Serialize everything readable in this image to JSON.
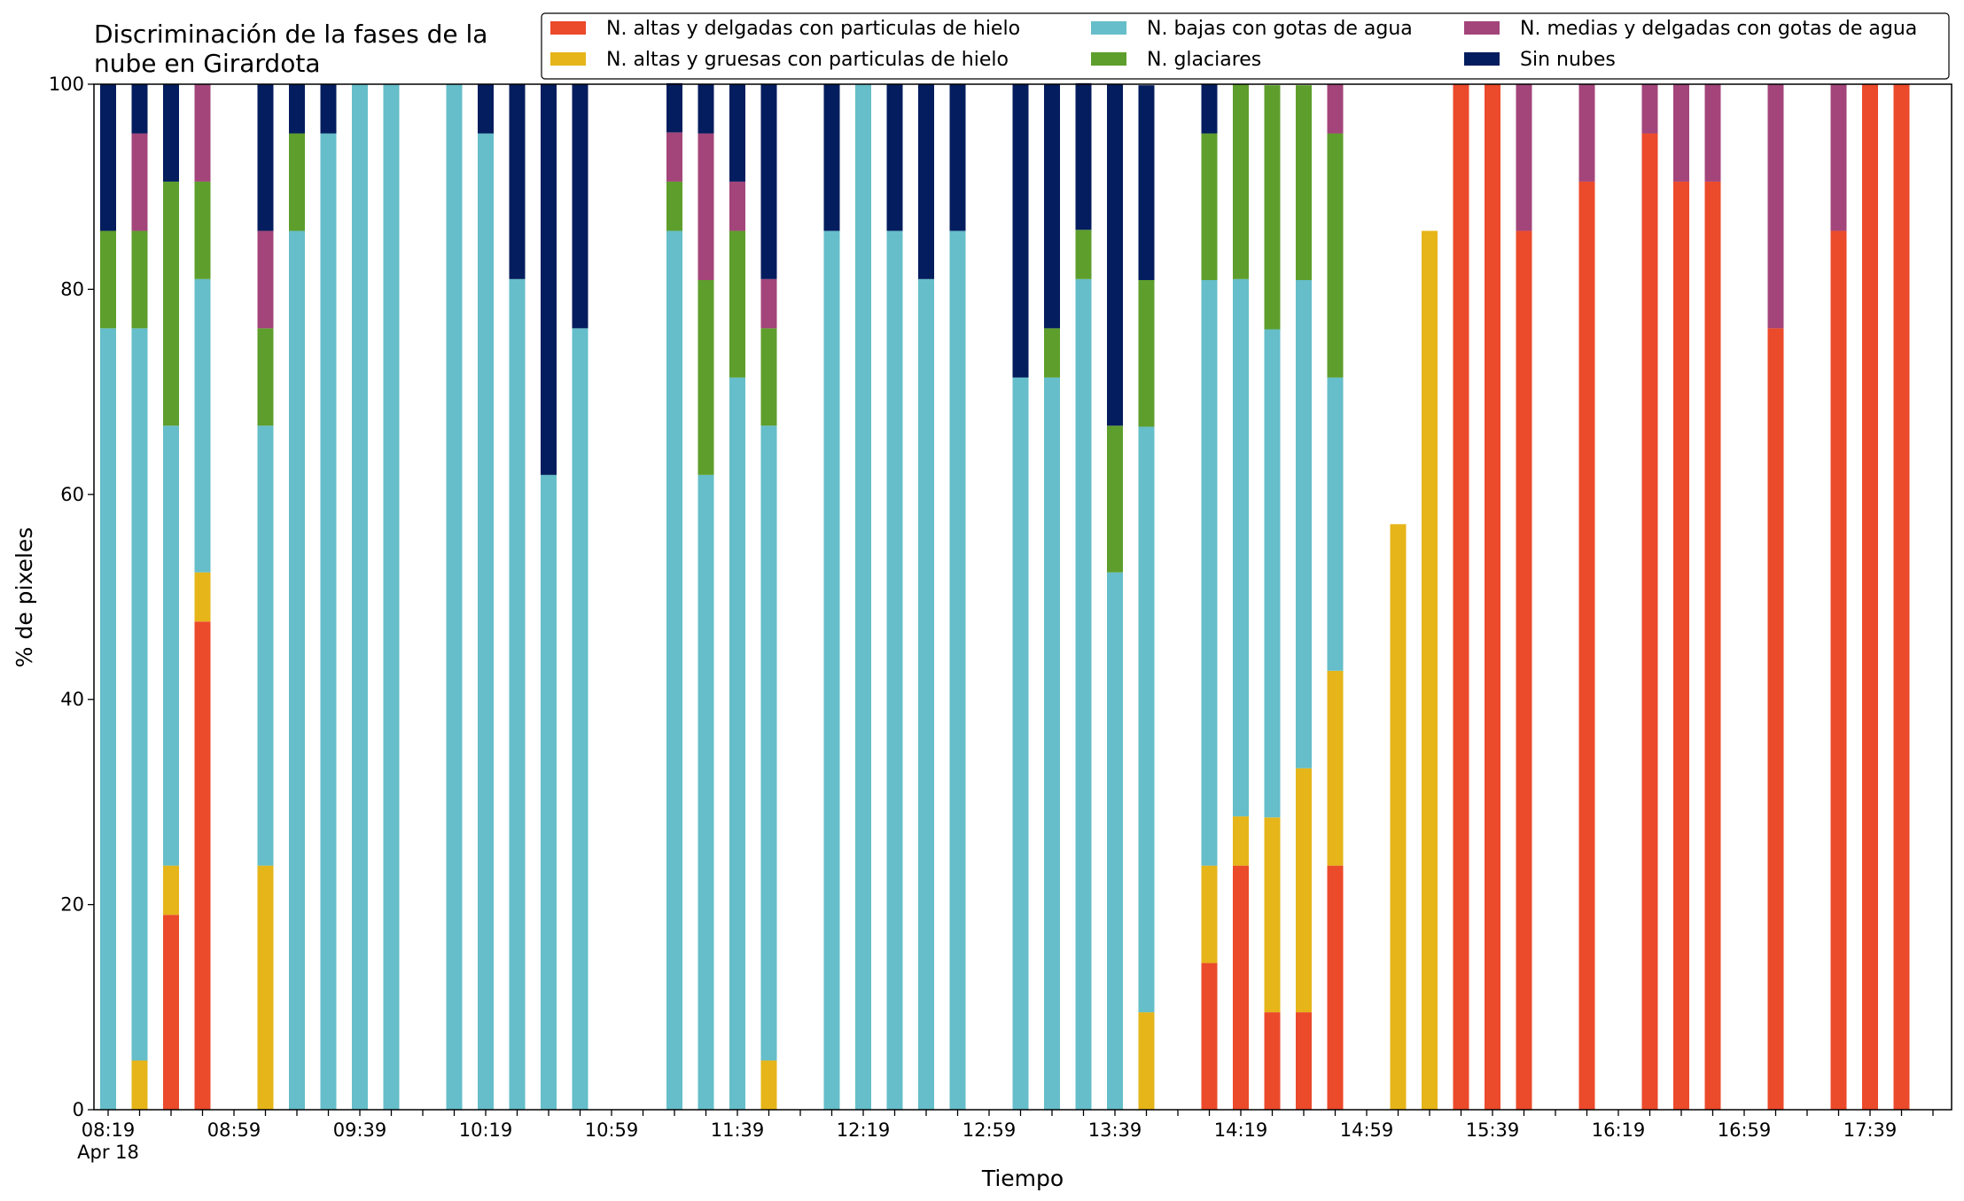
{
  "chart_data": {
    "type": "bar",
    "stacked": true,
    "title": "Discriminación de la fases de la nube en Girardota",
    "title_lines": [
      "Discriminación de la fases de la",
      "nube en Girardota"
    ],
    "xlabel": "Tiempo",
    "ylabel": "% de pixeles",
    "ylim": [
      0,
      100
    ],
    "yticks": [
      0,
      20,
      40,
      60,
      80,
      100
    ],
    "x_interval_minutes": 10,
    "x_start": "08:19",
    "x_tick_labels": [
      "08:19",
      "08:59",
      "09:39",
      "10:19",
      "10:59",
      "11:39",
      "12:19",
      "12:59",
      "13:39",
      "14:19",
      "14:59",
      "15:39",
      "16:19",
      "16:59",
      "17:39"
    ],
    "x_date_label": "Apr 18",
    "grid": false,
    "legend_position": "top-right",
    "legend_columns": 3,
    "x": [
      "08:19",
      "08:29",
      "08:39",
      "08:49",
      "08:59",
      "09:09",
      "09:19",
      "09:29",
      "09:39",
      "09:49",
      "09:59",
      "10:09",
      "10:19",
      "10:29",
      "10:39",
      "10:49",
      "10:59",
      "11:09",
      "11:19",
      "11:29",
      "11:39",
      "11:49",
      "11:59",
      "12:09",
      "12:19",
      "12:29",
      "12:39",
      "12:49",
      "12:59",
      "13:09",
      "13:19",
      "13:29",
      "13:39",
      "13:49",
      "13:59",
      "14:09",
      "14:19",
      "14:29",
      "14:39",
      "14:49",
      "14:59",
      "15:09",
      "15:19",
      "15:29",
      "15:39",
      "15:49",
      "15:59",
      "16:09",
      "16:19",
      "16:29",
      "16:39",
      "16:49",
      "16:59",
      "17:09",
      "17:19",
      "17:29",
      "17:39",
      "17:49"
    ],
    "series": [
      {
        "name": "N. altas y delgadas con particulas de hielo",
        "color": "#eb4a2b",
        "values": [
          0,
          0,
          19.0,
          47.6,
          null,
          0,
          0,
          0,
          0,
          0,
          null,
          0,
          0,
          0,
          0,
          0,
          null,
          null,
          0,
          0,
          0,
          0,
          null,
          0,
          0,
          0,
          0,
          0,
          null,
          0,
          0,
          0,
          0,
          0,
          null,
          14.3,
          23.8,
          9.5,
          9.5,
          23.8,
          null,
          0,
          0,
          100,
          100,
          85.7,
          null,
          90.5,
          null,
          95.2,
          90.5,
          90.5,
          null,
          76.2,
          null,
          85.7,
          100,
          100
        ]
      },
      {
        "name": "N. altas y gruesas con particulas de hielo",
        "color": "#e5b51a",
        "values": [
          0,
          4.8,
          4.8,
          4.8,
          null,
          23.8,
          0,
          0,
          0,
          0,
          null,
          0,
          0,
          0,
          0,
          0,
          null,
          null,
          0,
          0,
          0,
          4.8,
          null,
          0,
          0,
          0,
          0,
          0,
          null,
          0,
          0,
          0,
          0,
          9.5,
          null,
          9.5,
          4.8,
          19.0,
          23.8,
          19.0,
          null,
          57.1,
          85.7,
          0,
          0,
          0,
          null,
          0,
          null,
          0,
          0,
          0,
          null,
          0,
          null,
          0,
          0,
          0
        ]
      },
      {
        "name": "N. bajas con gotas de agua",
        "color": "#65bec9",
        "values": [
          76.2,
          71.4,
          42.9,
          28.6,
          null,
          42.9,
          85.7,
          95.2,
          100,
          100,
          null,
          100,
          95.2,
          81.0,
          61.9,
          76.2,
          null,
          null,
          85.7,
          61.9,
          71.4,
          61.9,
          null,
          85.7,
          100,
          85.7,
          81.0,
          85.7,
          null,
          71.4,
          71.4,
          81.0,
          52.4,
          57.1,
          null,
          57.1,
          52.4,
          47.6,
          47.6,
          28.6,
          null,
          0,
          0,
          0,
          0,
          0,
          null,
          0,
          null,
          0,
          0,
          0,
          null,
          0,
          null,
          0,
          0,
          0
        ]
      },
      {
        "name": "N. glaciares",
        "color": "#5e9e2c",
        "values": [
          9.5,
          9.5,
          23.8,
          9.5,
          null,
          9.5,
          9.5,
          0,
          0,
          0,
          null,
          0,
          0,
          0,
          0,
          0,
          null,
          null,
          4.8,
          19.0,
          14.3,
          9.5,
          null,
          0,
          0,
          0,
          0,
          0,
          null,
          0,
          4.8,
          4.8,
          14.3,
          14.3,
          null,
          14.3,
          19.0,
          23.8,
          19.0,
          23.8,
          null,
          0,
          0,
          0,
          0,
          0,
          null,
          0,
          null,
          0,
          0,
          0,
          null,
          0,
          null,
          0,
          0,
          0
        ]
      },
      {
        "name": "N. medias y delgadas con gotas de agua",
        "color": "#a3457a",
        "values": [
          0,
          9.5,
          0,
          9.5,
          null,
          9.5,
          0,
          0,
          0,
          0,
          null,
          0,
          0,
          0,
          0,
          0,
          null,
          null,
          4.8,
          14.3,
          4.8,
          4.8,
          null,
          0,
          0,
          0,
          0,
          0,
          null,
          0,
          0,
          0,
          0,
          0,
          null,
          0,
          0,
          0,
          0,
          4.8,
          null,
          0,
          0,
          0,
          0,
          14.3,
          null,
          9.5,
          null,
          4.8,
          9.5,
          9.5,
          null,
          23.8,
          null,
          14.3,
          0,
          0
        ]
      },
      {
        "name": "Sin nubes",
        "color": "#041d5e",
        "values": [
          14.3,
          4.8,
          9.5,
          0,
          null,
          14.3,
          4.8,
          4.8,
          0,
          0,
          null,
          0,
          4.8,
          19.0,
          38.1,
          23.8,
          null,
          null,
          4.8,
          4.8,
          9.5,
          19.0,
          null,
          14.3,
          0,
          14.3,
          19.0,
          14.3,
          null,
          28.6,
          23.8,
          14.3,
          33.3,
          19.0,
          null,
          4.8,
          0,
          0,
          0,
          0,
          null,
          0,
          0,
          0,
          0,
          0,
          null,
          0,
          null,
          0,
          0,
          0,
          null,
          0,
          null,
          0,
          0,
          0
        ]
      }
    ]
  }
}
